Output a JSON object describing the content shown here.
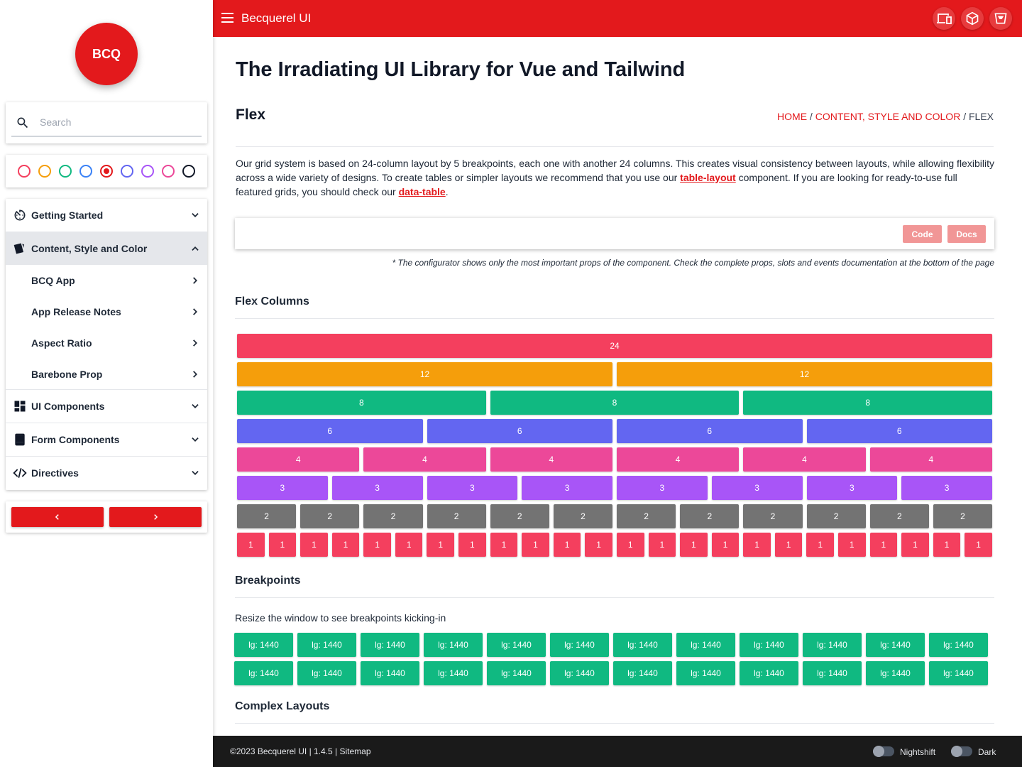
{
  "sidebar": {
    "logo_text": "BCQ",
    "search_placeholder": "Search",
    "color_swatches": [
      {
        "color": "#f43f5e",
        "selected": false
      },
      {
        "color": "#f59e0b",
        "selected": false
      },
      {
        "color": "#10b981",
        "selected": false
      },
      {
        "color": "#3b82f6",
        "selected": false
      },
      {
        "color": "#e3191c",
        "selected": true
      },
      {
        "color": "#6366f1",
        "selected": false
      },
      {
        "color": "#a855f7",
        "selected": false
      },
      {
        "color": "#ec4899",
        "selected": false
      },
      {
        "color": "#111827",
        "selected": false
      }
    ],
    "nav": {
      "getting_started": "Getting Started",
      "content_style_color": "Content, Style and Color",
      "sub_items": [
        "BCQ App",
        "App Release Notes",
        "Aspect Ratio",
        "Barebone Prop"
      ],
      "ui_components": "UI Components",
      "form_components": "Form Components",
      "directives": "Directives"
    },
    "prev_icon": "chevron-left-icon",
    "next_icon": "chevron-right-icon"
  },
  "header": {
    "title": "Becquerel UI",
    "icons": [
      "devices-icon",
      "cube-icon",
      "bucket-icon"
    ]
  },
  "main": {
    "page_title": "The Irradiating UI Library for Vue and Tailwind",
    "section_title": "Flex",
    "breadcrumb": {
      "home": "HOME",
      "sep": " / ",
      "category": "CONTENT, STYLE AND COLOR",
      "current": "FLEX"
    },
    "intro": {
      "part1": "Our grid system is based on 24-column layout by 5 breakpoints, each one with another 24 columns. This creates visual consistency between layouts, while allowing flexibility across a wide variety of designs. To create tables or simpler layouts we recommend that you use our ",
      "link1": "table-layout",
      "part2": " component. If you are looking for ready-to-use full featured grids, you should check our ",
      "link2": "data-table",
      "part3": "."
    },
    "code_button": "Code",
    "docs_button": "Docs",
    "configurator_note": "* The configurator shows only the most important props of the component. Check the complete props, slots and events documentation at the bottom of the page",
    "flex_columns_title": "Flex Columns",
    "flex_rows": [
      {
        "span": "24",
        "count": 1,
        "color": "#f43f5e"
      },
      {
        "span": "12",
        "count": 2,
        "color": "#f59e0b"
      },
      {
        "span": "8",
        "count": 3,
        "color": "#10b981"
      },
      {
        "span": "6",
        "count": 4,
        "color": "#6366f1"
      },
      {
        "span": "4",
        "count": 6,
        "color": "#ec4899"
      },
      {
        "span": "3",
        "count": 8,
        "color": "#a855f7"
      },
      {
        "span": "2",
        "count": 12,
        "color": "#737373"
      },
      {
        "span": "1",
        "count": 24,
        "color": "#f43f5e"
      }
    ],
    "breakpoints_title": "Breakpoints",
    "breakpoints_text": "Resize the window to see breakpoints kicking-in",
    "breakpoint_cell": "lg: 1440",
    "breakpoint_rows": 2,
    "breakpoint_cols": 12,
    "complex_layouts_title": "Complex Layouts"
  },
  "footer": {
    "copyright": "©2023 Becquerel UI | 1.4.5 | Sitemap",
    "nightshift_label": "Nightshift",
    "dark_label": "Dark"
  }
}
